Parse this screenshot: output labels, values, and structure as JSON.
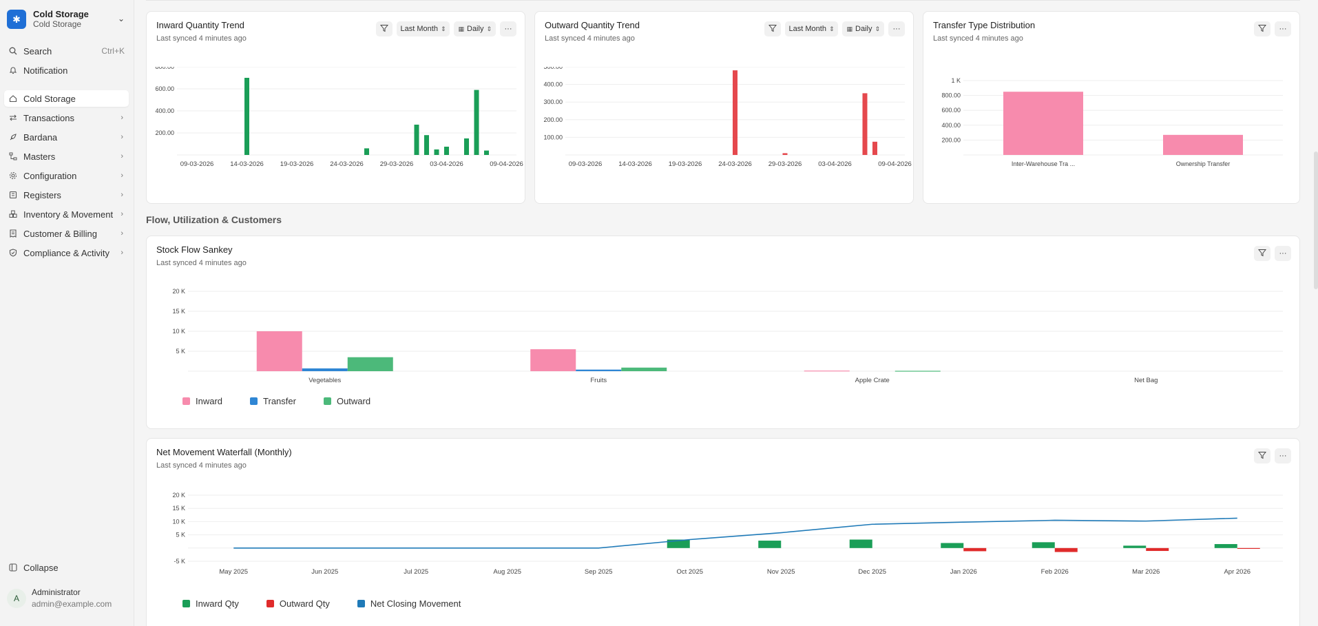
{
  "sidebar": {
    "brand": {
      "title": "Cold Storage",
      "subtitle": "Cold Storage"
    },
    "search": {
      "label": "Search",
      "shortcut": "Ctrl+K"
    },
    "notification": "Notification",
    "items": [
      {
        "label": "Cold Storage",
        "icon": "home-icon",
        "active": true
      },
      {
        "label": "Transactions",
        "icon": "swap-icon"
      },
      {
        "label": "Bardana",
        "icon": "rocket-icon"
      },
      {
        "label": "Masters",
        "icon": "hierarchy-icon"
      },
      {
        "label": "Configuration",
        "icon": "gear-icon"
      },
      {
        "label": "Registers",
        "icon": "register-icon"
      },
      {
        "label": "Inventory & Movement",
        "icon": "boxes-icon"
      },
      {
        "label": "Customer & Billing",
        "icon": "receipt-icon"
      },
      {
        "label": "Compliance & Activity",
        "icon": "shield-icon"
      }
    ],
    "collapse": "Collapse",
    "user": {
      "initial": "A",
      "name": "Administrator",
      "email": "admin@example.com"
    }
  },
  "section": {
    "flow_title": "Flow, Utilization & Customers"
  },
  "cards": {
    "inward": {
      "title": "Inward Quantity Trend",
      "subtitle": "Last synced 4 minutes ago",
      "range": "Last Month",
      "granularity": "Daily"
    },
    "outward": {
      "title": "Outward Quantity Trend",
      "subtitle": "Last synced 4 minutes ago",
      "range": "Last Month",
      "granularity": "Daily"
    },
    "transfer": {
      "title": "Transfer Type Distribution",
      "subtitle": "Last synced 4 minutes ago"
    },
    "sankey": {
      "title": "Stock Flow Sankey",
      "subtitle": "Last synced 4 minutes ago"
    },
    "waterfall": {
      "title": "Net Movement Waterfall (Monthly)",
      "subtitle": "Last synced 4 minutes ago"
    }
  },
  "chart_data": [
    {
      "type": "bar",
      "title": "Inward Quantity Trend",
      "color": "#1a9e57",
      "ylim": [
        0,
        800
      ],
      "yticks": [
        "200.00",
        "400.00",
        "600.00",
        "800.00"
      ],
      "xticks": [
        "09-03-2026",
        "14-03-2026",
        "19-03-2026",
        "24-03-2026",
        "29-03-2026",
        "03-04-2026",
        "09-04-2026"
      ],
      "x": [
        14,
        26,
        31,
        32,
        33,
        34,
        36,
        37,
        38
      ],
      "values": [
        700,
        60,
        275,
        180,
        50,
        75,
        150,
        590,
        40
      ]
    },
    {
      "type": "bar",
      "title": "Outward Quantity Trend",
      "color": "#e5484d",
      "ylim": [
        0,
        500
      ],
      "yticks": [
        "100.00",
        "200.00",
        "300.00",
        "400.00",
        "500.00"
      ],
      "xticks": [
        "09-03-2026",
        "14-03-2026",
        "19-03-2026",
        "24-03-2026",
        "29-03-2026",
        "03-04-2026",
        "09-04-2026"
      ],
      "x": [
        24,
        29,
        37,
        38
      ],
      "values": [
        480,
        10,
        350,
        75
      ]
    },
    {
      "type": "bar",
      "title": "Transfer Type Distribution",
      "color": "#f78bad",
      "ylim": [
        0,
        1000
      ],
      "yticks": [
        "200.00",
        "400.00",
        "600.00",
        "800.00",
        "1 K"
      ],
      "categories": [
        "Inter-Warehouse Tra ...",
        "Ownership Transfer"
      ],
      "values": [
        850,
        270
      ]
    },
    {
      "type": "bar",
      "title": "Stock Flow Sankey",
      "ylim": [
        0,
        20000
      ],
      "yticks": [
        "5 K",
        "10 K",
        "15 K",
        "20 K"
      ],
      "categories": [
        "Vegetables",
        "Fruits",
        "Apple Crate",
        "Net Bag"
      ],
      "series": [
        {
          "name": "Inward",
          "color": "#f78bad",
          "values": [
            10000,
            5500,
            150,
            0
          ]
        },
        {
          "name": "Transfer",
          "color": "#2f86d4",
          "values": [
            700,
            400,
            0,
            0
          ]
        },
        {
          "name": "Outward",
          "color": "#4cb97a",
          "values": [
            3500,
            900,
            100,
            0
          ]
        }
      ]
    },
    {
      "type": "bar",
      "title": "Net Movement Waterfall (Monthly)",
      "ylim": [
        -5000,
        20000
      ],
      "yticks": [
        "-5 K",
        "5 K",
        "10 K",
        "15 K",
        "20 K"
      ],
      "categories": [
        "May 2025",
        "Jun 2025",
        "Jul 2025",
        "Aug 2025",
        "Sep 2025",
        "Oct 2025",
        "Nov 2025",
        "Dec 2025",
        "Jan 2026",
        "Feb 2026",
        "Mar 2026",
        "Apr 2026"
      ],
      "series": [
        {
          "name": "Inward Qty",
          "color": "#1a9e57",
          "values": [
            0,
            0,
            0,
            0,
            0,
            3200,
            2800,
            3200,
            1900,
            2200,
            900,
            1500
          ]
        },
        {
          "name": "Outward Qty",
          "color": "#e02b2b",
          "values": [
            0,
            0,
            0,
            0,
            0,
            0,
            0,
            0,
            -1200,
            -1500,
            -1100,
            -300
          ]
        },
        {
          "name": "Net Closing Movement",
          "color": "#1f7ab8",
          "line": true,
          "values": [
            0,
            0,
            0,
            0,
            0,
            3200,
            5800,
            9000,
            9800,
            10500,
            10200,
            11300
          ]
        }
      ]
    }
  ]
}
